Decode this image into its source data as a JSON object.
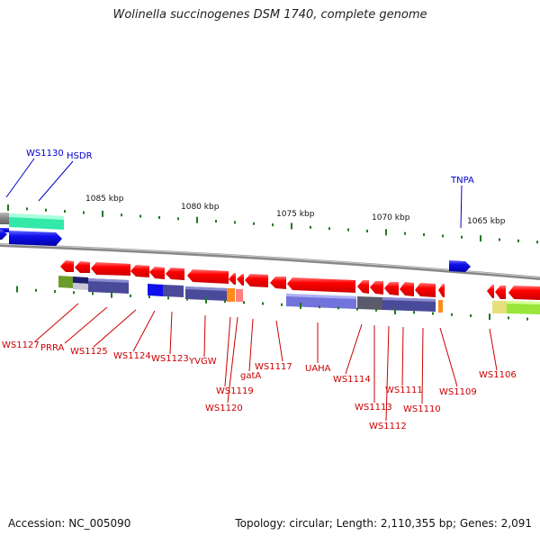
{
  "title": "Wolinella succinogenes DSM 1740, complete genome",
  "footer": {
    "accession": "Accession: NC_005090",
    "summary": "Topology: circular; Length: 2,110,355 bp; Genes: 2,091"
  },
  "colors": {
    "forward_gene": "#1111ee",
    "reverse_gene": "#ee1111",
    "label_blue": "#0000cc",
    "label_red": "#cc0000",
    "backbone": "#808080",
    "tick": "#227722"
  },
  "kbp_labels": [
    "1085 kbp",
    "1080 kbp",
    "1075 kbp",
    "1070 kbp",
    "1065 kbp"
  ],
  "forward_labels": [
    "WS1130",
    "HSDR",
    "TNPA"
  ],
  "reverse_labels": [
    "WS1127",
    "PRRA",
    "WS1125",
    "WS1124",
    "WS1123",
    "YVGW",
    "WS1119",
    "WS1120",
    "gatA",
    "WS1117",
    "UAHA",
    "WS1114",
    "WS1113",
    "WS1112",
    "WS1111",
    "WS1110",
    "WS1109",
    "WS1106"
  ]
}
